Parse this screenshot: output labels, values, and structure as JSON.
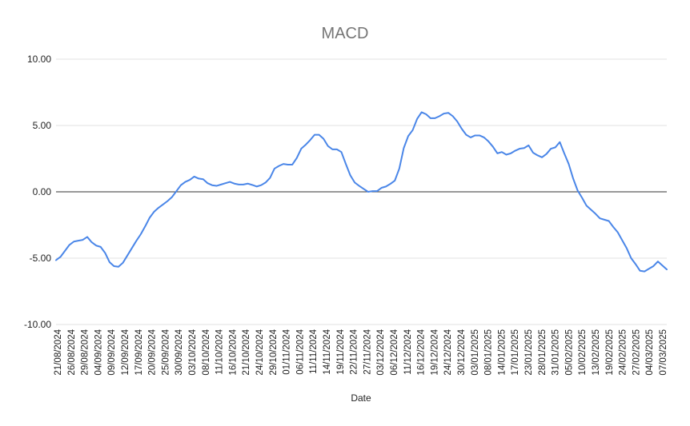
{
  "chart_data": {
    "type": "line",
    "title": "MACD",
    "xlabel": "Date",
    "ylabel": "",
    "ylim": [
      -10,
      10
    ],
    "yticks": [
      10,
      5,
      0,
      -5,
      -10
    ],
    "ytick_labels": [
      "10.00",
      "5.00",
      "0.00",
      "-5.00",
      "-10.00"
    ],
    "grid": true,
    "legend": "none",
    "colors": {
      "series": "#4a86e8",
      "grid": "#e0e0e0",
      "zero_line": "#333333",
      "title": "#757575"
    },
    "x_ticks": [
      "21/08/2024",
      "26/08/2024",
      "29/08/2024",
      "04/09/2024",
      "09/09/2024",
      "12/09/2024",
      "17/09/2024",
      "20/09/2024",
      "25/09/2024",
      "30/09/2024",
      "03/10/2024",
      "08/10/2024",
      "11/10/2024",
      "16/10/2024",
      "21/10/2024",
      "24/10/2024",
      "29/10/2024",
      "01/11/2024",
      "06/11/2024",
      "11/11/2024",
      "14/11/2024",
      "19/11/2024",
      "22/11/2024",
      "27/11/2024",
      "03/12/2024",
      "06/12/2024",
      "11/12/2024",
      "16/12/2024",
      "19/12/2024",
      "24/12/2024",
      "30/12/2024",
      "03/01/2025",
      "08/01/2025",
      "14/01/2025",
      "17/01/2025",
      "23/01/2025",
      "28/01/2025",
      "31/01/2025",
      "05/02/2025",
      "10/02/2025",
      "13/02/2025",
      "19/02/2025",
      "24/02/2025",
      "27/02/2025",
      "04/03/2025",
      "07/03/2025"
    ],
    "series": [
      {
        "name": "",
        "values": [
          -5.15,
          -4.9,
          -4.45,
          -4.0,
          -3.75,
          -3.68,
          -3.62,
          -3.4,
          -3.8,
          -4.05,
          -4.15,
          -4.6,
          -5.3,
          -5.6,
          -5.65,
          -5.35,
          -4.8,
          -4.25,
          -3.7,
          -3.2,
          -2.6,
          -1.95,
          -1.5,
          -1.2,
          -0.95,
          -0.7,
          -0.4,
          0.05,
          0.5,
          0.75,
          0.9,
          1.15,
          1.0,
          0.95,
          0.65,
          0.5,
          0.45,
          0.55,
          0.65,
          0.75,
          0.62,
          0.55,
          0.55,
          0.62,
          0.52,
          0.4,
          0.5,
          0.7,
          1.05,
          1.75,
          1.95,
          2.1,
          2.05,
          2.05,
          2.55,
          3.25,
          3.55,
          3.9,
          4.3,
          4.3,
          4.0,
          3.45,
          3.2,
          3.2,
          3.0,
          2.1,
          1.25,
          0.7,
          0.45,
          0.22,
          0.0,
          0.05,
          0.05,
          0.3,
          0.4,
          0.6,
          0.85,
          1.75,
          3.3,
          4.2,
          4.65,
          5.5,
          6.0,
          5.85,
          5.55,
          5.55,
          5.7,
          5.9,
          5.95,
          5.7,
          5.3,
          4.75,
          4.3,
          4.1,
          4.25,
          4.25,
          4.1,
          3.8,
          3.4,
          2.9,
          3.0,
          2.8,
          2.9,
          3.1,
          3.25,
          3.3,
          3.5,
          2.95,
          2.75,
          2.6,
          2.85,
          3.25,
          3.35,
          3.75,
          2.9,
          2.1,
          1.0,
          0.1,
          -0.45,
          -1.05,
          -1.35,
          -1.65,
          -2.0,
          -2.1,
          -2.2,
          -2.65,
          -3.05,
          -3.65,
          -4.25,
          -5.0,
          -5.45,
          -5.95,
          -6.0,
          -5.8,
          -5.6,
          -5.25,
          -5.55,
          -5.85
        ]
      }
    ]
  }
}
